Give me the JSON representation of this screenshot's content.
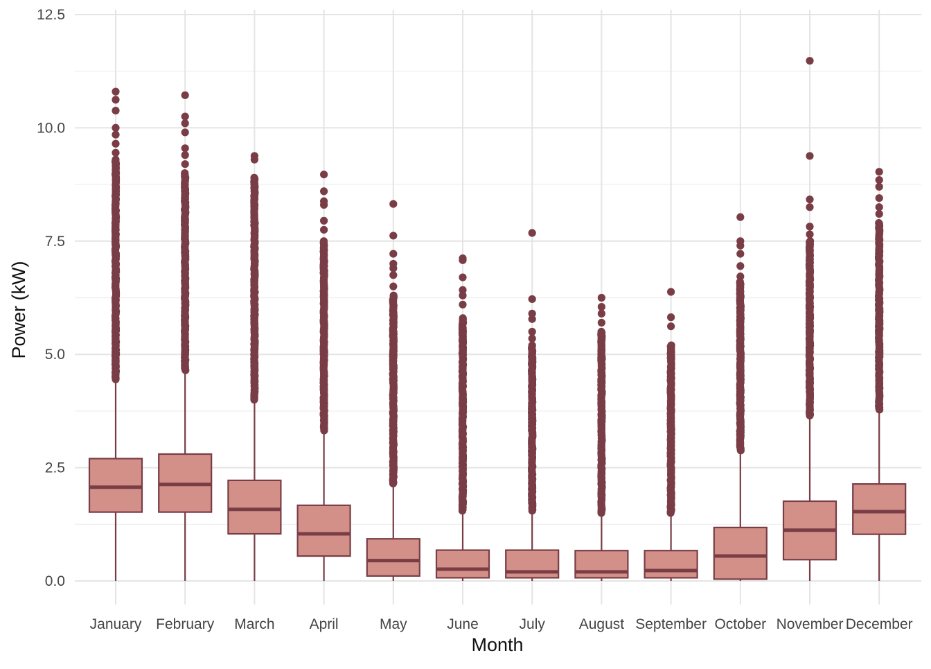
{
  "chart_data": {
    "type": "boxplot",
    "xlabel": "Month",
    "ylabel": "Power (kW)",
    "ylim": [
      -0.5,
      12.5
    ],
    "yticks": [
      0,
      2.5,
      5,
      7.5,
      10,
      12.5
    ],
    "ytick_labels": [
      "0.0",
      "2.5",
      "5.0",
      "7.5",
      "10.0",
      "12.5"
    ],
    "grid": true,
    "legend": "none",
    "colors": {
      "box_fill": "#d29088",
      "box_stroke": "#793d46",
      "outlier": "#793d46",
      "grid": "#e4e4e4"
    },
    "categories": [
      "January",
      "February",
      "March",
      "April",
      "May",
      "June",
      "July",
      "August",
      "September",
      "October",
      "November",
      "December"
    ],
    "boxes": [
      {
        "month": "January",
        "whisker_low": 0.0,
        "q1": 1.52,
        "median": 2.07,
        "q3": 2.7,
        "whisker_high": 4.45,
        "outlier_range": [
          4.45,
          9.3
        ],
        "outliers_sparse": [
          9.45,
          9.65,
          9.85,
          10.0,
          10.38,
          10.62,
          10.8
        ]
      },
      {
        "month": "February",
        "whisker_low": 0.0,
        "q1": 1.52,
        "median": 2.13,
        "q3": 2.8,
        "whisker_high": 4.65,
        "outlier_range": [
          4.65,
          9.0
        ],
        "outliers_sparse": [
          9.2,
          9.4,
          9.55,
          9.9,
          10.1,
          10.25,
          10.72
        ]
      },
      {
        "month": "March",
        "whisker_low": 0.0,
        "q1": 1.04,
        "median": 1.58,
        "q3": 2.22,
        "whisker_high": 4.0,
        "outlier_range": [
          4.0,
          8.9
        ],
        "outliers_sparse": [
          9.3,
          9.38
        ]
      },
      {
        "month": "April",
        "whisker_low": 0.0,
        "q1": 0.55,
        "median": 1.04,
        "q3": 1.67,
        "whisker_high": 3.32,
        "outlier_range": [
          3.32,
          7.5
        ],
        "outliers_sparse": [
          7.75,
          7.95,
          8.3,
          8.38,
          8.6,
          8.97
        ]
      },
      {
        "month": "May",
        "whisker_low": 0.0,
        "q1": 0.11,
        "median": 0.45,
        "q3": 0.93,
        "whisker_high": 2.15,
        "outlier_range": [
          2.15,
          6.3
        ],
        "outliers_sparse": [
          6.5,
          6.75,
          6.9,
          7.0,
          7.22,
          7.62,
          8.32
        ]
      },
      {
        "month": "June",
        "whisker_low": 0.0,
        "q1": 0.07,
        "median": 0.26,
        "q3": 0.68,
        "whisker_high": 1.55,
        "outlier_range": [
          1.55,
          5.8
        ],
        "outliers_sparse": [
          6.1,
          6.3,
          6.42,
          6.7,
          7.08,
          7.12
        ]
      },
      {
        "month": "July",
        "whisker_low": 0.0,
        "q1": 0.07,
        "median": 0.2,
        "q3": 0.68,
        "whisker_high": 1.55,
        "outlier_range": [
          1.55,
          5.2
        ],
        "outliers_sparse": [
          5.35,
          5.5,
          5.78,
          5.9,
          6.22,
          7.68
        ]
      },
      {
        "month": "August",
        "whisker_low": 0.0,
        "q1": 0.07,
        "median": 0.2,
        "q3": 0.67,
        "whisker_high": 1.5,
        "outlier_range": [
          1.5,
          5.5
        ],
        "outliers_sparse": [
          5.7,
          5.9,
          6.05,
          6.25
        ]
      },
      {
        "month": "September",
        "whisker_low": 0.0,
        "q1": 0.07,
        "median": 0.23,
        "q3": 0.67,
        "whisker_high": 1.5,
        "outlier_range": [
          1.5,
          5.2
        ],
        "outliers_sparse": [
          5.62,
          5.82,
          6.38
        ]
      },
      {
        "month": "October",
        "whisker_low": 0.0,
        "q1": 0.04,
        "median": 0.55,
        "q3": 1.18,
        "whisker_high": 2.88,
        "outlier_range": [
          2.88,
          6.6
        ],
        "outliers_sparse": [
          6.72,
          6.95,
          7.22,
          7.4,
          7.5,
          8.03
        ]
      },
      {
        "month": "November",
        "whisker_low": 0.0,
        "q1": 0.47,
        "median": 1.12,
        "q3": 1.76,
        "whisker_high": 3.65,
        "outlier_range": [
          3.65,
          7.5
        ],
        "outliers_sparse": [
          7.65,
          7.82,
          8.25,
          8.42,
          9.38,
          11.48
        ]
      },
      {
        "month": "December",
        "whisker_low": 0.0,
        "q1": 1.03,
        "median": 1.53,
        "q3": 2.14,
        "whisker_high": 3.78,
        "outlier_range": [
          3.78,
          7.9
        ],
        "outliers_sparse": [
          8.1,
          8.25,
          8.45,
          8.7,
          8.85,
          9.03
        ]
      }
    ]
  }
}
